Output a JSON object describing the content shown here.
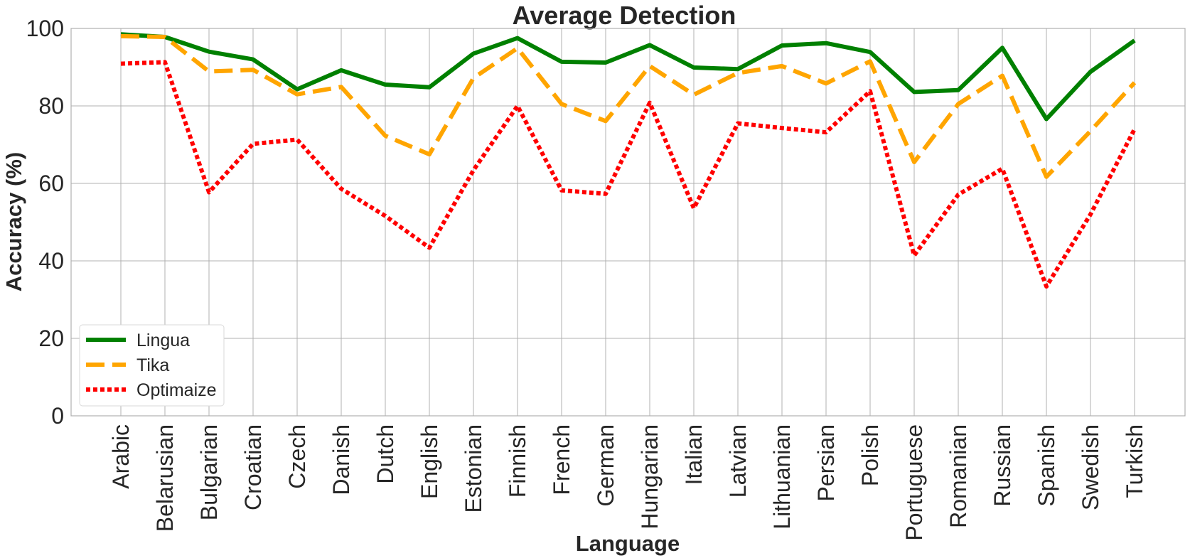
{
  "chart_data": {
    "type": "line",
    "title": "Average Detection",
    "xlabel": "Language",
    "ylabel": "Accuracy (%)",
    "ylim": [
      0,
      100
    ],
    "yticks": [
      0,
      20,
      40,
      60,
      80,
      100
    ],
    "grid": true,
    "legend_position": "bottom-left",
    "categories": [
      "Arabic",
      "Belarusian",
      "Bulgarian",
      "Croatian",
      "Czech",
      "Danish",
      "Dutch",
      "English",
      "Estonian",
      "Finnish",
      "French",
      "German",
      "Hungarian",
      "Italian",
      "Latvian",
      "Lithuanian",
      "Persian",
      "Polish",
      "Portuguese",
      "Romanian",
      "Russian",
      "Spanish",
      "Swedish",
      "Turkish"
    ],
    "series": [
      {
        "name": "Lingua",
        "color": "#008000",
        "dash": "solid",
        "values": [
          98.5,
          97.8,
          94.0,
          92.0,
          84.3,
          89.2,
          85.5,
          84.8,
          93.5,
          97.5,
          91.4,
          91.2,
          95.7,
          89.9,
          89.5,
          95.6,
          96.2,
          93.9,
          83.6,
          84.1,
          95.0,
          76.6,
          88.8,
          96.9
        ]
      },
      {
        "name": "Tika",
        "color": "#FFA500",
        "dash": "dashed",
        "values": [
          98.0,
          97.8,
          88.9,
          89.3,
          83.0,
          84.9,
          72.3,
          67.5,
          87.2,
          94.9,
          80.5,
          76.1,
          90.3,
          82.9,
          88.5,
          90.3,
          85.8,
          91.5,
          65.5,
          80.5,
          87.8,
          61.7,
          73.5,
          86.0
        ]
      },
      {
        "name": "Optimaize",
        "color": "#FF0000",
        "dash": "dotted",
        "values": [
          90.9,
          91.3,
          57.7,
          70.2,
          71.3,
          58.6,
          51.6,
          43.4,
          63.4,
          80.0,
          58.2,
          57.3,
          80.8,
          53.6,
          75.5,
          74.3,
          73.2,
          83.8,
          41.4,
          57.1,
          63.8,
          33.4,
          52.0,
          74.0
        ]
      }
    ]
  }
}
